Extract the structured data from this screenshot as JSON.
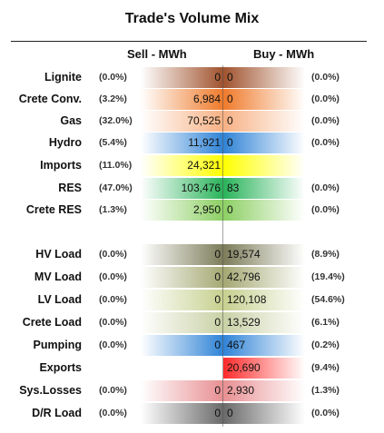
{
  "title": "Trade's Volume Mix",
  "headers": {
    "sell": "Sell - MWh",
    "buy": "Buy - MWh"
  },
  "rows": [
    {
      "label": "Lignite",
      "sell_pct": "(0.0%)",
      "sell": "0",
      "buy": "0",
      "buy_pct": "(0.0%)",
      "color": "#a0522d"
    },
    {
      "label": "Crete Conv.",
      "sell_pct": "(3.2%)",
      "sell": "6,984",
      "buy": "0",
      "buy_pct": "(0.0%)",
      "color": "#ef7a2a"
    },
    {
      "label": "Gas",
      "sell_pct": "(32.0%)",
      "sell": "70,525",
      "buy": "0",
      "buy_pct": "(0.0%)",
      "color": "#f7b184"
    },
    {
      "label": "Hydro",
      "sell_pct": "(5.4%)",
      "sell": "11,921",
      "buy": "0",
      "buy_pct": "(0.0%)",
      "color": "#2f83d6"
    },
    {
      "label": "Imports",
      "sell_pct": "(11.0%)",
      "sell": "24,321",
      "buy": "",
      "buy_pct": "",
      "color": "#ffff00"
    },
    {
      "label": "RES",
      "sell_pct": "(47.0%)",
      "sell": "103,476",
      "buy": "83",
      "buy_pct": "(0.0%)",
      "color": "#29b35a"
    },
    {
      "label": "Crete RES",
      "sell_pct": "(1.3%)",
      "sell": "2,950",
      "buy": "0",
      "buy_pct": "(0.0%)",
      "color": "#8ccf63"
    },
    {
      "label": "HV Load",
      "sell_pct": "(0.0%)",
      "sell": "0",
      "buy": "19,574",
      "buy_pct": "(8.9%)",
      "color": "#7c7c5a"
    },
    {
      "label": "MV Load",
      "sell_pct": "(0.0%)",
      "sell": "0",
      "buy": "42,796",
      "buy_pct": "(19.4%)",
      "color": "#a4a872"
    },
    {
      "label": "LV Load",
      "sell_pct": "(0.0%)",
      "sell": "0",
      "buy": "120,108",
      "buy_pct": "(54.6%)",
      "color": "#c7d08f"
    },
    {
      "label": "Crete Load",
      "sell_pct": "(0.0%)",
      "sell": "0",
      "buy": "13,529",
      "buy_pct": "(6.1%)",
      "color": "#c9d1a6"
    },
    {
      "label": "Pumping",
      "sell_pct": "(0.0%)",
      "sell": "0",
      "buy": "467",
      "buy_pct": "(0.2%)",
      "color": "#2f83d6"
    },
    {
      "label": "Exports",
      "sell_pct": "",
      "sell": "",
      "buy": "20,690",
      "buy_pct": "(9.4%)",
      "color": "#ff2a2a"
    },
    {
      "label": "Sys.Losses",
      "sell_pct": "(0.0%)",
      "sell": "0",
      "buy": "2,930",
      "buy_pct": "(1.3%)",
      "color": "#e88f92"
    },
    {
      "label": "D/R Load",
      "sell_pct": "(0.0%)",
      "sell": "0",
      "buy": "0",
      "buy_pct": "(0.0%)",
      "color": "#6a6a6a"
    }
  ]
}
